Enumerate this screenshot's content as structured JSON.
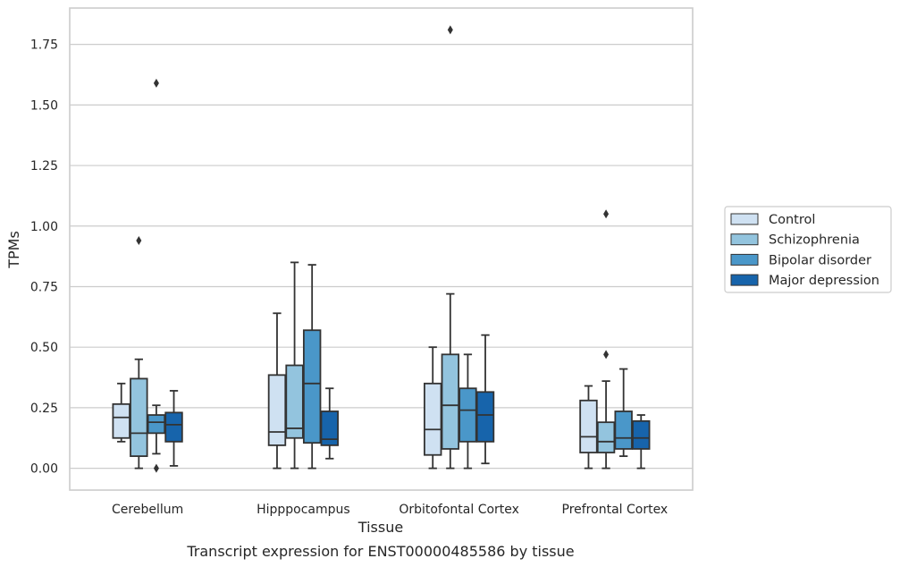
{
  "chart_data": {
    "type": "box",
    "title": "Transcript expression for ENST00000485586 by tissue",
    "xlabel": "Tissue",
    "ylabel": "TPMs",
    "ylim": [
      -0.09,
      1.9
    ],
    "yticks": [
      "0.00",
      "0.25",
      "0.50",
      "0.75",
      "1.00",
      "1.25",
      "1.50",
      "1.75"
    ],
    "ytick_values": [
      0,
      0.25,
      0.5,
      0.75,
      1.0,
      1.25,
      1.5,
      1.75
    ],
    "grid": true,
    "legend_position": "right",
    "categories": [
      "Cerebellum",
      "Hipppocampus",
      "Orbitofontal Cortex",
      "Prefrontal Cortex"
    ],
    "series": [
      {
        "name": "Control",
        "color": "#cfe1f2",
        "boxes": [
          {
            "whislo": 0.11,
            "q1": 0.125,
            "med": 0.21,
            "q3": 0.265,
            "whishi": 0.35,
            "fliers": []
          },
          {
            "whislo": 0.0,
            "q1": 0.095,
            "med": 0.15,
            "q3": 0.385,
            "whishi": 0.64,
            "fliers": []
          },
          {
            "whislo": 0.0,
            "q1": 0.055,
            "med": 0.16,
            "q3": 0.35,
            "whishi": 0.5,
            "fliers": []
          },
          {
            "whislo": 0.0,
            "q1": 0.065,
            "med": 0.13,
            "q3": 0.28,
            "whishi": 0.34,
            "fliers": []
          }
        ]
      },
      {
        "name": "Schizophrenia",
        "color": "#93c4de",
        "boxes": [
          {
            "whislo": 0.0,
            "q1": 0.05,
            "med": 0.145,
            "q3": 0.37,
            "whishi": 0.45,
            "fliers": [
              0.94
            ]
          },
          {
            "whislo": 0.0,
            "q1": 0.125,
            "med": 0.165,
            "q3": 0.425,
            "whishi": 0.85,
            "fliers": []
          },
          {
            "whislo": 0.0,
            "q1": 0.08,
            "med": 0.26,
            "q3": 0.47,
            "whishi": 0.72,
            "fliers": [
              1.81
            ]
          },
          {
            "whislo": 0.0,
            "q1": 0.065,
            "med": 0.11,
            "q3": 0.19,
            "whishi": 0.36,
            "fliers": [
              1.05,
              0.47
            ]
          }
        ]
      },
      {
        "name": "Bipolar disorder",
        "color": "#4a97c9",
        "boxes": [
          {
            "whislo": 0.06,
            "q1": 0.145,
            "med": 0.19,
            "q3": 0.22,
            "whishi": 0.26,
            "fliers": [
              1.59,
              0.0
            ]
          },
          {
            "whislo": 0.0,
            "q1": 0.105,
            "med": 0.35,
            "q3": 0.57,
            "whishi": 0.84,
            "fliers": []
          },
          {
            "whislo": 0.0,
            "q1": 0.11,
            "med": 0.24,
            "q3": 0.33,
            "whishi": 0.47,
            "fliers": []
          },
          {
            "whislo": 0.05,
            "q1": 0.08,
            "med": 0.125,
            "q3": 0.235,
            "whishi": 0.41,
            "fliers": []
          }
        ]
      },
      {
        "name": "Major depression",
        "color": "#1764ab",
        "boxes": [
          {
            "whislo": 0.01,
            "q1": 0.11,
            "med": 0.18,
            "q3": 0.23,
            "whishi": 0.32,
            "fliers": []
          },
          {
            "whislo": 0.04,
            "q1": 0.095,
            "med": 0.12,
            "q3": 0.235,
            "whishi": 0.33,
            "fliers": []
          },
          {
            "whislo": 0.02,
            "q1": 0.11,
            "med": 0.22,
            "q3": 0.315,
            "whishi": 0.55,
            "fliers": []
          },
          {
            "whislo": 0.0,
            "q1": 0.08,
            "med": 0.125,
            "q3": 0.195,
            "whishi": 0.22,
            "fliers": []
          }
        ]
      }
    ]
  }
}
